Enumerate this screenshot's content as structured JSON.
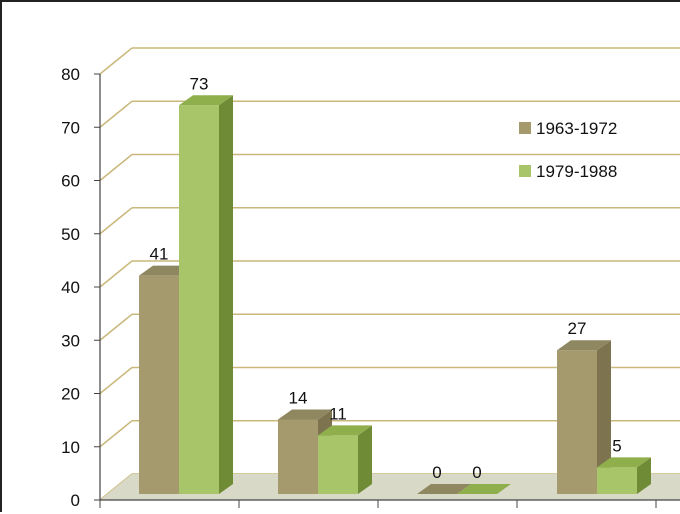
{
  "chart_data": {
    "type": "bar",
    "style": "3d-clustered-column",
    "categories": [
      "",
      "",
      "",
      ""
    ],
    "series": [
      {
        "name": "1963-1972",
        "values": [
          41,
          14,
          0,
          27
        ],
        "color": "#a59a6e",
        "side_color": "#7d744f",
        "top_color": "#8f875f"
      },
      {
        "name": "1979-1988",
        "values": [
          73,
          11,
          0,
          5
        ],
        "color": "#a9c56a",
        "side_color": "#6f8b35",
        "top_color": "#8fae4c"
      }
    ],
    "y_ticks": [
      "0",
      "10",
      "20",
      "30",
      "40",
      "50",
      "60",
      "70",
      "80"
    ],
    "ylim": [
      0,
      80
    ],
    "grid": true,
    "legend_position": "right",
    "data_labels": true,
    "colors": {
      "gridline": "#c9b87a",
      "floor": "#d9d9c8",
      "axis": "#444444"
    }
  }
}
